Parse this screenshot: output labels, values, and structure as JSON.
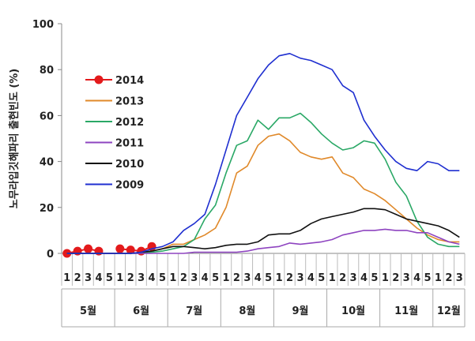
{
  "chart_data": {
    "type": "line",
    "ylabel": "노무라입깃해파리 출현빈도 (%)",
    "ylim": [
      0,
      100
    ],
    "yticks": [
      0,
      20,
      40,
      60,
      80,
      100
    ],
    "grid": false,
    "legend_position": "upper-left",
    "week_labels": [
      "1",
      "2",
      "3",
      "4",
      "5",
      "1",
      "2",
      "3",
      "4",
      "5",
      "1",
      "2",
      "3",
      "4",
      "5",
      "1",
      "2",
      "3",
      "4",
      "5",
      "1",
      "2",
      "3",
      "4",
      "5",
      "1",
      "2",
      "3",
      "4",
      "5",
      "1",
      "2",
      "3",
      "4",
      "5",
      "1",
      "2",
      "3"
    ],
    "months": [
      {
        "label": "5월",
        "weeks": 5
      },
      {
        "label": "6월",
        "weeks": 5
      },
      {
        "label": "7월",
        "weeks": 5
      },
      {
        "label": "8월",
        "weeks": 5
      },
      {
        "label": "9월",
        "weeks": 5
      },
      {
        "label": "10월",
        "weeks": 5
      },
      {
        "label": "11월",
        "weeks": 5
      },
      {
        "label": "12월",
        "weeks": 3
      }
    ],
    "series": [
      {
        "name": "2014",
        "color": "#e31a1c",
        "marker": "circle",
        "values": [
          0,
          1,
          2,
          1,
          null,
          2,
          1.5,
          1,
          3,
          null,
          null,
          null,
          null,
          null,
          null,
          null,
          null,
          null,
          null,
          null,
          null,
          null,
          null,
          null,
          null,
          null,
          null,
          null,
          null,
          null,
          null,
          null,
          null,
          null,
          null,
          null,
          null,
          null
        ]
      },
      {
        "name": "2013",
        "color": "#e0892a",
        "marker": "none",
        "values": [
          0,
          0,
          0,
          0,
          0,
          0,
          0,
          0.5,
          1,
          2,
          4,
          4,
          6,
          8,
          11,
          20,
          35,
          38,
          47,
          51,
          52,
          49,
          44,
          42,
          41,
          42,
          35,
          33,
          28,
          26,
          23,
          19,
          15,
          11,
          8,
          6,
          5,
          5
        ]
      },
      {
        "name": "2012",
        "color": "#2aa866",
        "marker": "none",
        "values": [
          0,
          0,
          0,
          0,
          0,
          0,
          0,
          0,
          0.5,
          1,
          2,
          3,
          6,
          15,
          21,
          35,
          47,
          49,
          58,
          54,
          59,
          59,
          61,
          57,
          52,
          48,
          45,
          46,
          49,
          48,
          41,
          31,
          25,
          14,
          7,
          4,
          3,
          3
        ]
      },
      {
        "name": "2011",
        "color": "#8e44c0",
        "marker": "none",
        "values": [
          0,
          0,
          0,
          0,
          0,
          0,
          0,
          0,
          0,
          0,
          0,
          0,
          0.5,
          0.5,
          0.5,
          0.5,
          0.5,
          1,
          2,
          2.5,
          3,
          4.5,
          4,
          4.5,
          5,
          6,
          8,
          9,
          10,
          10,
          10.5,
          10,
          10,
          9,
          9,
          7,
          5,
          4
        ]
      },
      {
        "name": "2010",
        "color": "#111111",
        "marker": "none",
        "values": [
          0,
          0,
          0,
          0,
          0,
          0,
          0,
          0.5,
          1,
          2,
          3,
          3,
          2.5,
          2,
          2.5,
          3.5,
          4,
          4,
          5,
          8,
          8.5,
          8.5,
          10,
          13,
          15,
          16,
          17,
          18,
          19.5,
          19.5,
          19,
          17,
          15,
          14,
          13,
          12,
          10,
          7
        ]
      },
      {
        "name": "2009",
        "color": "#1f2fd0",
        "marker": "none",
        "values": [
          0,
          0,
          0,
          0,
          0,
          0,
          0,
          0.5,
          2,
          3,
          5,
          10,
          13,
          17,
          30,
          45,
          60,
          68,
          76,
          82,
          86,
          87,
          85,
          84,
          82,
          80,
          73,
          70,
          58,
          51,
          45,
          40,
          37,
          36,
          40,
          39,
          36,
          36
        ]
      }
    ]
  }
}
